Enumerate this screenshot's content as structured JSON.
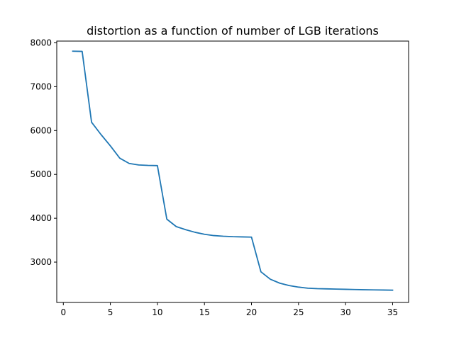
{
  "chart_data": {
    "type": "line",
    "title": "distortion as a function of number of LGB iterations",
    "xlabel": "",
    "ylabel": "",
    "xlim": [
      -0.7,
      36.7
    ],
    "ylim": [
      2080,
      8040
    ],
    "xticks": [
      0,
      5,
      10,
      15,
      20,
      25,
      30,
      35
    ],
    "yticks": [
      3000,
      4000,
      5000,
      6000,
      7000,
      8000
    ],
    "grid": false,
    "legend": "none",
    "series": [
      {
        "color": "#1f77b4",
        "x": [
          1,
          2,
          3,
          4,
          5,
          6,
          7,
          8,
          9,
          10,
          11,
          12,
          13,
          14,
          15,
          16,
          17,
          18,
          19,
          20,
          21,
          22,
          23,
          24,
          25,
          26,
          27,
          28,
          29,
          30,
          31,
          32,
          33,
          34,
          35
        ],
        "y": [
          7810,
          7805,
          6190,
          5910,
          5650,
          5370,
          5250,
          5215,
          5205,
          5200,
          3980,
          3810,
          3740,
          3680,
          3635,
          3605,
          3590,
          3580,
          3575,
          3570,
          2780,
          2610,
          2520,
          2465,
          2430,
          2405,
          2395,
          2390,
          2385,
          2380,
          2375,
          2370,
          2367,
          2364,
          2360
        ]
      }
    ]
  }
}
